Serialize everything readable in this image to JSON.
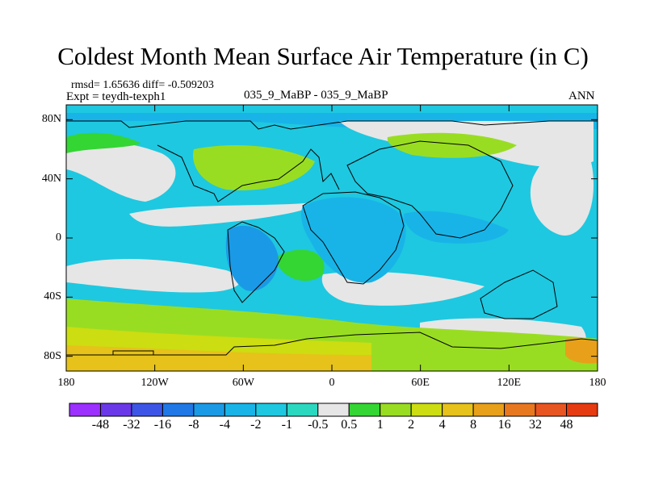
{
  "title": "Coldest Month Mean Surface Air Temperature (in C)",
  "stats_line": "rmsd= 1.65636 diff= -0.509203",
  "expt_line": "Expt = teydh-texph1",
  "comparison_label": "035_9_MaBP - 035_9_MaBP",
  "period_label": "ANN",
  "map": {
    "projection": "cylindrical-equidistant",
    "lon_range": [
      -180,
      180
    ],
    "lat_range": [
      -90,
      90
    ]
  },
  "lat_ticks": [
    {
      "value": 80,
      "label": "80N"
    },
    {
      "value": 40,
      "label": "40N"
    },
    {
      "value": 0,
      "label": "0"
    },
    {
      "value": -40,
      "label": "40S"
    },
    {
      "value": -80,
      "label": "80S"
    }
  ],
  "lon_ticks": [
    {
      "value": -180,
      "label": "180"
    },
    {
      "value": -120,
      "label": "120W"
    },
    {
      "value": -60,
      "label": "60W"
    },
    {
      "value": 0,
      "label": "0"
    },
    {
      "value": 60,
      "label": "60E"
    },
    {
      "value": 120,
      "label": "120E"
    },
    {
      "value": 180,
      "label": "180"
    }
  ],
  "colorbar": {
    "labels": [
      "-48",
      "-32",
      "-16",
      "-8",
      "-4",
      "-2",
      "-1",
      "-0.5",
      "0.5",
      "1",
      "2",
      "4",
      "8",
      "16",
      "32",
      "48"
    ],
    "colors": [
      "#9b30ff",
      "#6a38e8",
      "#3d55e6",
      "#1f78e6",
      "#1a9ae6",
      "#18b4e8",
      "#1ec8e0",
      "#2ad8c0",
      "#e6e6e6",
      "#33d633",
      "#99dd22",
      "#ccdd11",
      "#e6c21a",
      "#e8a01a",
      "#e87820",
      "#e85520",
      "#e63a10"
    ]
  },
  "legend_colors": {
    "land_outline": "#000000",
    "mid_cold": "#18b4e8",
    "near_zero": "#e6e6e6"
  }
}
